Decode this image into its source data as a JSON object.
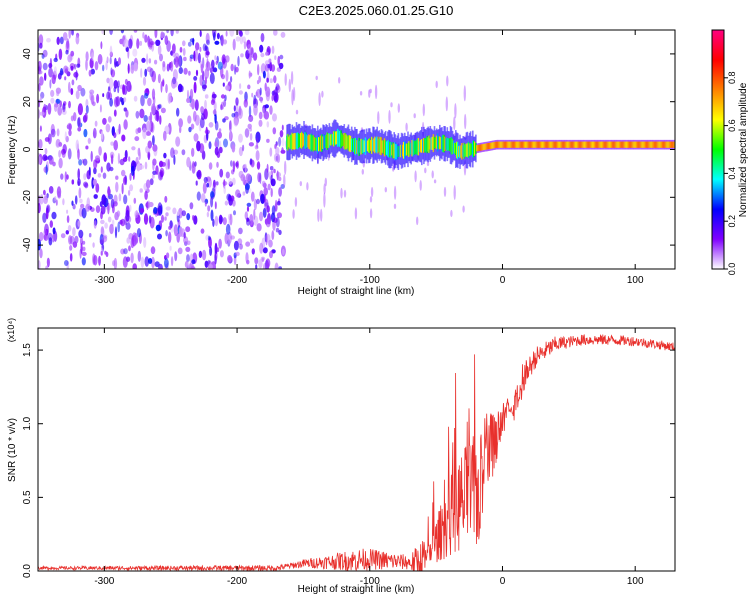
{
  "title": "C2E3.2025.060.01.25.G10",
  "colors": {
    "background": "#ffffff",
    "axis": "#000000",
    "snr_line": "#e8302c"
  },
  "chart_data": [
    {
      "type": "heatmap",
      "xlabel": "Height of straight line (km)",
      "ylabel": "Frequency (Hz)",
      "xlim": [
        -350,
        130
      ],
      "ylim": [
        -50,
        50
      ],
      "x_ticks": [
        -300,
        -200,
        -100,
        0,
        100
      ],
      "x_tick_labels": [
        "-300",
        "-200",
        "-100",
        "0",
        "100"
      ],
      "y_ticks": [
        -40,
        -20,
        0,
        20,
        40
      ],
      "y_tick_labels": [
        "-40",
        "-20",
        "0",
        "20",
        "40"
      ],
      "colorbar": {
        "label": "Normalized spectral amplitude",
        "range": [
          0,
          1
        ],
        "ticks": [
          0.0,
          0.2,
          0.4,
          0.6,
          0.8
        ],
        "tick_labels": [
          "0.0",
          "0.2",
          "0.4",
          "0.6",
          "0.8"
        ],
        "colormap": [
          "#ffffff",
          "#8000ff",
          "#0000ff",
          "#00ffff",
          "#00ff00",
          "#ffff00",
          "#ff8000",
          "#ff0000",
          "#ff0080"
        ]
      },
      "noise_region": {
        "x_range": [
          -350,
          -165
        ],
        "freq_range": [
          -50,
          50
        ],
        "amplitude": [
          0.05,
          0.2
        ]
      },
      "ridge": [
        {
          "x": -163,
          "freq": 3
        },
        {
          "x": -150,
          "freq": 4
        },
        {
          "x": -140,
          "freq": 2
        },
        {
          "x": -125,
          "freq": 5
        },
        {
          "x": -110,
          "freq": 1
        },
        {
          "x": -95,
          "freq": 2
        },
        {
          "x": -80,
          "freq": -1
        },
        {
          "x": -65,
          "freq": 1
        },
        {
          "x": -50,
          "freq": 3
        },
        {
          "x": -40,
          "freq": 2
        },
        {
          "x": -33,
          "freq": -1
        },
        {
          "x": -25,
          "freq": 0
        },
        {
          "x": -15,
          "freq": 1
        },
        {
          "x": -5,
          "freq": 2
        },
        {
          "x": 10,
          "freq": 2
        },
        {
          "x": 40,
          "freq": 2
        },
        {
          "x": 80,
          "freq": 2
        },
        {
          "x": 130,
          "freq": 2
        }
      ]
    },
    {
      "type": "line",
      "xlabel": "Height of straight line (km)",
      "ylabel": "SNR (10 * v/v)",
      "multiplier": "(x10⁴)",
      "xlim": [
        -350,
        130
      ],
      "ylim": [
        0,
        1.65
      ],
      "x_ticks": [
        -300,
        -200,
        -100,
        0,
        100
      ],
      "x_tick_labels": [
        "-300",
        "-200",
        "-100",
        "0",
        "100"
      ],
      "y_ticks": [
        0.0,
        0.5,
        1.0,
        1.5
      ],
      "y_tick_labels": [
        "0.0",
        "0.5",
        "1.0",
        "1.5"
      ],
      "series": [
        {
          "color": "#e8302c",
          "envelope": [
            {
              "x": -350,
              "y": 0.02
            },
            {
              "x": -170,
              "y": 0.02
            },
            {
              "x": -150,
              "y": 0.05
            },
            {
              "x": -100,
              "y": 0.08
            },
            {
              "x": -60,
              "y": 0.05
            },
            {
              "x": -55,
              "y": 0.2
            },
            {
              "x": -45,
              "y": 0.5
            },
            {
              "x": -35,
              "y": 0.75
            },
            {
              "x": -25,
              "y": 0.9
            },
            {
              "x": -15,
              "y": 0.95
            },
            {
              "x": -5,
              "y": 1.05
            },
            {
              "x": 5,
              "y": 1.15
            },
            {
              "x": 15,
              "y": 1.3
            },
            {
              "x": 25,
              "y": 1.45
            },
            {
              "x": 40,
              "y": 1.54
            },
            {
              "x": 60,
              "y": 1.57
            },
            {
              "x": 80,
              "y": 1.57
            },
            {
              "x": 100,
              "y": 1.56
            },
            {
              "x": 130,
              "y": 1.52
            }
          ],
          "spread": [
            {
              "x": -350,
              "amp": 0.01
            },
            {
              "x": -160,
              "amp": 0.02
            },
            {
              "x": -130,
              "amp": 0.05
            },
            {
              "x": -110,
              "amp": 0.08
            },
            {
              "x": -70,
              "amp": 0.05
            },
            {
              "x": -55,
              "amp": 0.25
            },
            {
              "x": -30,
              "amp": 0.6
            },
            {
              "x": -15,
              "amp": 0.45
            },
            {
              "x": 0,
              "amp": 0.18
            },
            {
              "x": 20,
              "amp": 0.08
            },
            {
              "x": 50,
              "amp": 0.04
            },
            {
              "x": 130,
              "amp": 0.03
            }
          ]
        }
      ]
    }
  ]
}
